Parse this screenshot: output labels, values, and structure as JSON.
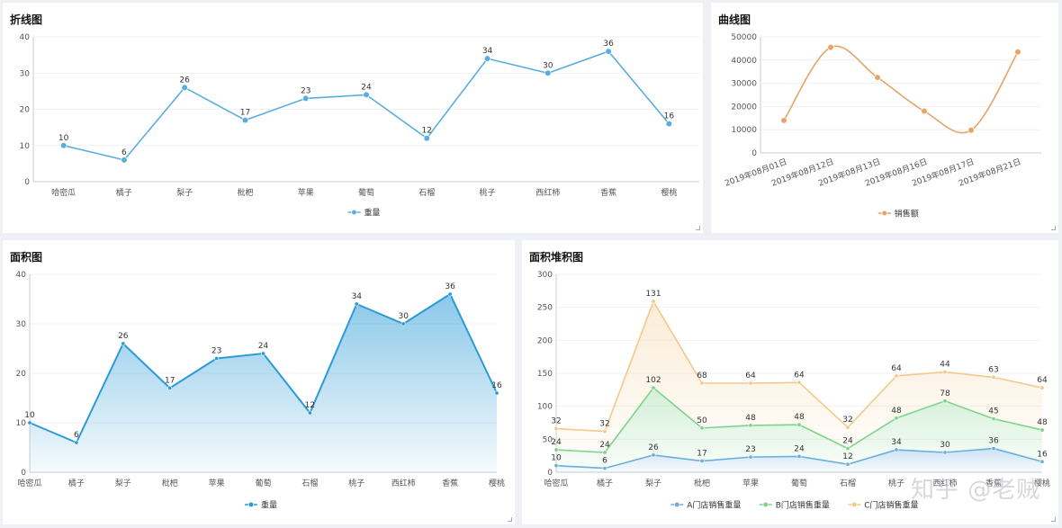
{
  "watermark": "知乎 @老贼",
  "panels": [
    {
      "title": "折线图"
    },
    {
      "title": "曲线图"
    },
    {
      "title": "面积图"
    },
    {
      "title": "面积堆积图"
    }
  ],
  "chart_data": [
    {
      "type": "line",
      "title": "折线图",
      "categories": [
        "哈密瓜",
        "橘子",
        "梨子",
        "枇杷",
        "苹果",
        "葡萄",
        "石榴",
        "桃子",
        "西红柿",
        "香蕉",
        "樱桃"
      ],
      "ylim": [
        0,
        40
      ],
      "yticks": [
        0,
        10,
        20,
        30,
        40
      ],
      "series": [
        {
          "name": "重量",
          "values": [
            10,
            6,
            26,
            17,
            23,
            24,
            12,
            34,
            30,
            36,
            16
          ],
          "color": "#5aaedf"
        }
      ],
      "legend": "bottom-center",
      "data_labels": true
    },
    {
      "type": "line",
      "title": "曲线图",
      "smooth": true,
      "categories": [
        "2019年08月01日",
        "2019年08月12日",
        "2019年08月13日",
        "2019年08月16日",
        "2019年08月17日",
        "2019年08月21日"
      ],
      "ylim": [
        0,
        50000
      ],
      "yticks": [
        0,
        10000,
        20000,
        30000,
        40000,
        50000
      ],
      "series": [
        {
          "name": "销售额",
          "values": [
            14000,
            45500,
            32500,
            18000,
            9800,
            43500
          ],
          "color": "#e6a467"
        }
      ],
      "legend": "bottom-center",
      "data_labels": false
    },
    {
      "type": "area",
      "title": "面积图",
      "categories": [
        "哈密瓜",
        "橘子",
        "梨子",
        "枇杷",
        "苹果",
        "葡萄",
        "石榴",
        "桃子",
        "西红柿",
        "香蕉",
        "樱桃"
      ],
      "ylim": [
        0,
        40
      ],
      "yticks": [
        0,
        10,
        20,
        30,
        40
      ],
      "series": [
        {
          "name": "重量",
          "values": [
            10,
            6,
            26,
            17,
            23,
            24,
            12,
            34,
            30,
            36,
            16
          ],
          "color": "#2b9bd6"
        }
      ],
      "legend": "bottom-center",
      "data_labels": true
    },
    {
      "type": "area",
      "title": "面积堆积图",
      "stacked": true,
      "categories": [
        "哈密瓜",
        "橘子",
        "梨子",
        "枇杷",
        "苹果",
        "葡萄",
        "石榴",
        "桃子",
        "西红柿",
        "香蕉",
        "樱桃"
      ],
      "ylim": [
        0,
        300
      ],
      "yticks": [
        0,
        50,
        100,
        150,
        200,
        250,
        300
      ],
      "series": [
        {
          "name": "A门店销售重量",
          "values": [
            10,
            6,
            26,
            17,
            23,
            24,
            12,
            34,
            30,
            36,
            16
          ],
          "color": "#6aaede"
        },
        {
          "name": "B门店销售重量",
          "values": [
            24,
            24,
            102,
            50,
            48,
            48,
            24,
            48,
            78,
            45,
            48
          ],
          "color": "#7ed38c"
        },
        {
          "name": "C门店销售重量",
          "values": [
            32,
            32,
            131,
            68,
            64,
            64,
            32,
            64,
            44,
            63,
            64
          ],
          "color": "#f2c98b"
        }
      ],
      "legend": "bottom-center",
      "data_labels": true
    }
  ]
}
